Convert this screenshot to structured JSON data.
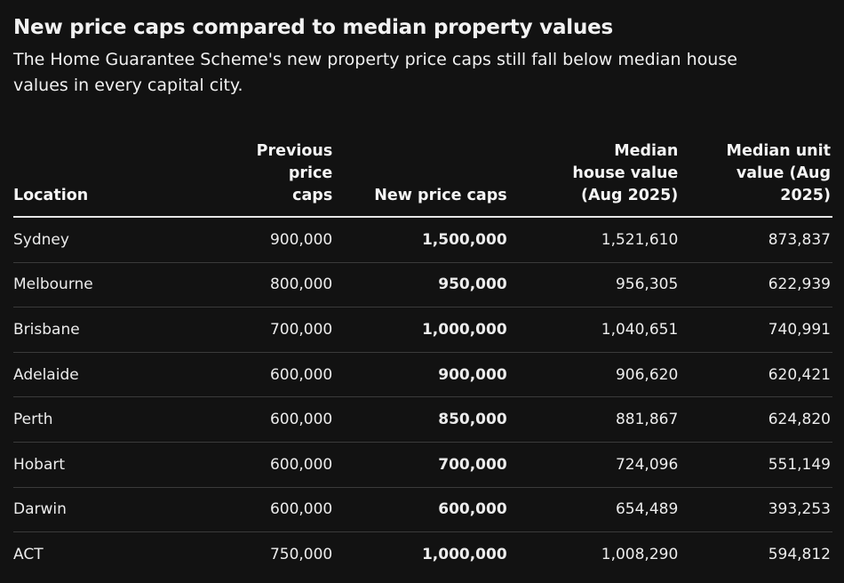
{
  "header": {
    "title": "New price caps compared to median property values",
    "subtitle": "The Home Guarantee Scheme's new property price caps still fall below median house values in every capital city."
  },
  "table": {
    "columns": [
      "Location",
      "Previous price caps",
      "New price caps",
      "Median house value (Aug 2025)",
      "Median unit value (Aug 2025)"
    ],
    "rows": [
      [
        "Sydney",
        "900,000",
        "1,500,000",
        "1,521,610",
        "873,837"
      ],
      [
        "Melbourne",
        "800,000",
        "950,000",
        "956,305",
        "622,939"
      ],
      [
        "Brisbane",
        "700,000",
        "1,000,000",
        "1,040,651",
        "740,991"
      ],
      [
        "Adelaide",
        "600,000",
        "900,000",
        "906,620",
        "620,421"
      ],
      [
        "Perth",
        "600,000",
        "850,000",
        "881,867",
        "624,820"
      ],
      [
        "Hobart",
        "600,000",
        "700,000",
        "724,096",
        "551,149"
      ],
      [
        "Darwin",
        "600,000",
        "600,000",
        "654,489",
        "393,253"
      ],
      [
        "ACT",
        "750,000",
        "1,000,000",
        "1,008,290",
        "594,812"
      ]
    ]
  }
}
